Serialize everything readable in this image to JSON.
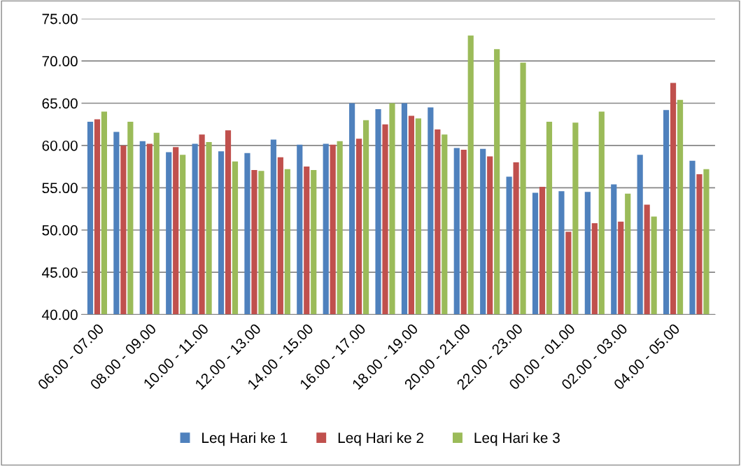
{
  "chart_data": {
    "type": "bar",
    "categories": [
      "06.00 - 07.00",
      null,
      "08.00 - 09.00",
      null,
      "10.00 - 11.00",
      null,
      "12.00 - 13.00",
      null,
      "14.00 - 15.00",
      null,
      "16.00 - 17.00",
      null,
      "18.00 - 19.00",
      null,
      "20.00 - 21.00",
      null,
      "22.00 - 23.00",
      null,
      "00.00 - 01.00",
      null,
      "02.00 - 03.00",
      null,
      "04.00 - 05.00",
      null
    ],
    "series": [
      {
        "name": "Leq Hari ke 1",
        "color": "#4f81bd",
        "values": [
          62.8,
          61.6,
          60.5,
          59.2,
          60.2,
          59.3,
          59.1,
          60.7,
          60.1,
          60.2,
          65.0,
          64.3,
          65.0,
          64.5,
          59.7,
          59.6,
          56.3,
          54.4,
          54.6,
          54.5,
          55.4,
          58.9,
          64.2,
          58.2
        ]
      },
      {
        "name": "Leq Hari ke 2",
        "color": "#c0504d",
        "values": [
          63.1,
          60.0,
          60.2,
          59.8,
          61.3,
          61.8,
          57.1,
          58.6,
          57.5,
          60.1,
          60.8,
          62.5,
          63.5,
          61.9,
          59.5,
          58.7,
          58.0,
          55.1,
          49.8,
          50.8,
          51.0,
          53.0,
          67.4,
          56.6
        ]
      },
      {
        "name": "Leq Hari ke 3",
        "color": "#9bbb59",
        "values": [
          64.0,
          62.8,
          61.5,
          58.9,
          60.4,
          58.1,
          57.0,
          57.2,
          57.1,
          60.5,
          63.0,
          65.0,
          63.2,
          61.3,
          73.0,
          71.4,
          69.8,
          62.8,
          62.7,
          64.0,
          54.3,
          51.6,
          65.4,
          57.2
        ]
      }
    ],
    "ylim": [
      40,
      75
    ],
    "yticks": [
      {
        "value": 40,
        "label": "40.00"
      },
      {
        "value": 45,
        "label": "45.00"
      },
      {
        "value": 50,
        "label": "50.00"
      },
      {
        "value": 55,
        "label": "55.00"
      },
      {
        "value": 60,
        "label": "60.00"
      },
      {
        "value": 65,
        "label": "65.00"
      },
      {
        "value": 70,
        "label": "70.00"
      },
      {
        "value": 75,
        "label": "75.00"
      }
    ],
    "grid": "y",
    "legend": "bottom"
  }
}
